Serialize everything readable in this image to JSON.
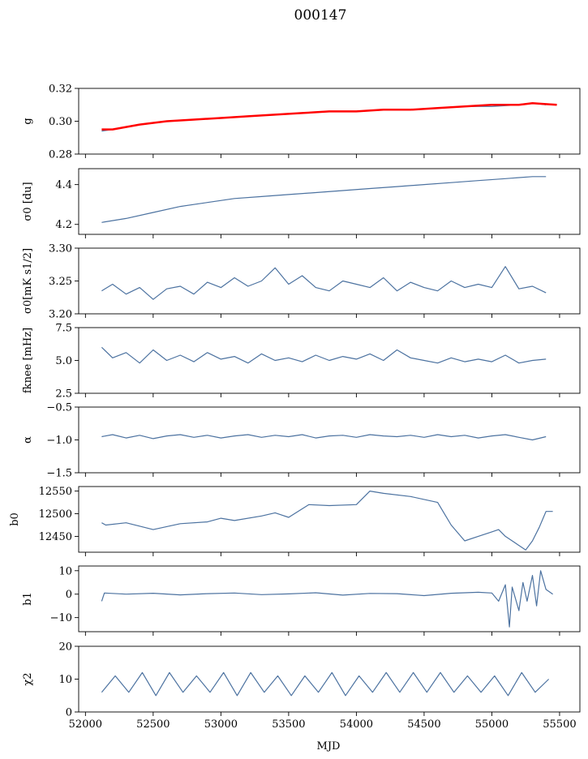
{
  "figure": {
    "title": "000147",
    "xlabel": "MJD"
  },
  "chart_data": [
    {
      "id": "g",
      "type": "line",
      "ylabel": "g",
      "xlim": [
        51950,
        55650
      ],
      "ylim": [
        0.28,
        0.32
      ],
      "yticks": [
        "0.28",
        "0.30",
        "0.32"
      ],
      "ytick_values": [
        0.28,
        0.3,
        0.32
      ],
      "colors": [
        "#4c72a0",
        "#ff0000"
      ],
      "series": [
        {
          "x": [
            52120,
            52200,
            52400,
            52600,
            52800,
            53000,
            53200,
            53400,
            53600,
            53800,
            54000,
            54200,
            54400,
            54600,
            54800,
            55000,
            55200,
            55300,
            55400
          ],
          "y": [
            0.294,
            0.295,
            0.298,
            0.3,
            0.301,
            0.302,
            0.303,
            0.304,
            0.305,
            0.306,
            0.306,
            0.307,
            0.307,
            0.308,
            0.309,
            0.309,
            0.31,
            0.311,
            0.31
          ]
        },
        {
          "x": [
            52120,
            52200,
            52400,
            52600,
            52800,
            53000,
            53200,
            53400,
            53600,
            53800,
            54000,
            54200,
            54400,
            54600,
            54800,
            55000,
            55200,
            55300,
            55480
          ],
          "y": [
            0.295,
            0.295,
            0.298,
            0.3,
            0.301,
            0.302,
            0.303,
            0.304,
            0.305,
            0.306,
            0.306,
            0.307,
            0.307,
            0.308,
            0.309,
            0.31,
            0.31,
            0.311,
            0.31
          ]
        }
      ]
    },
    {
      "id": "sigma0-du",
      "type": "line",
      "ylabel": "σ0 [du]",
      "xlim": [
        51950,
        55650
      ],
      "ylim": [
        4.15,
        4.48
      ],
      "yticks": [
        "4.2",
        "4.4"
      ],
      "ytick_values": [
        4.2,
        4.4
      ],
      "colors": [
        "#4c72a0"
      ],
      "series": [
        {
          "x": [
            52120,
            52300,
            52500,
            52700,
            52900,
            53100,
            53300,
            53500,
            53700,
            53900,
            54100,
            54300,
            54500,
            54700,
            54900,
            55100,
            55300,
            55400
          ],
          "y": [
            4.21,
            4.23,
            4.26,
            4.29,
            4.31,
            4.33,
            4.34,
            4.35,
            4.36,
            4.37,
            4.38,
            4.39,
            4.4,
            4.41,
            4.42,
            4.43,
            4.44,
            4.44
          ]
        }
      ]
    },
    {
      "id": "sigma0-mk",
      "type": "line",
      "ylabel": "σ0[mK s1/2]",
      "xlim": [
        51950,
        55650
      ],
      "ylim": [
        3.2,
        3.3
      ],
      "yticks": [
        "3.20",
        "3.25",
        "3.30"
      ],
      "ytick_values": [
        3.2,
        3.25,
        3.3
      ],
      "colors": [
        "#4c72a0"
      ],
      "series": [
        {
          "x": [
            52120,
            52200,
            52300,
            52400,
            52500,
            52600,
            52700,
            52800,
            52900,
            53000,
            53100,
            53200,
            53300,
            53400,
            53500,
            53600,
            53700,
            53800,
            53900,
            54000,
            54100,
            54200,
            54300,
            54400,
            54500,
            54600,
            54700,
            54800,
            54900,
            55000,
            55100,
            55200,
            55300,
            55400
          ],
          "y": [
            3.235,
            3.245,
            3.23,
            3.24,
            3.222,
            3.238,
            3.242,
            3.23,
            3.248,
            3.24,
            3.255,
            3.242,
            3.25,
            3.27,
            3.245,
            3.258,
            3.24,
            3.235,
            3.25,
            3.245,
            3.24,
            3.255,
            3.235,
            3.248,
            3.24,
            3.235,
            3.25,
            3.24,
            3.245,
            3.24,
            3.272,
            3.238,
            3.242,
            3.232
          ]
        }
      ]
    },
    {
      "id": "fknee",
      "type": "line",
      "ylabel": "fknee [mHz]",
      "xlim": [
        51950,
        55650
      ],
      "ylim": [
        2.5,
        7.5
      ],
      "yticks": [
        "2.5",
        "5.0",
        "7.5"
      ],
      "ytick_values": [
        2.5,
        5.0,
        7.5
      ],
      "colors": [
        "#4c72a0"
      ],
      "series": [
        {
          "x": [
            52120,
            52200,
            52300,
            52400,
            52500,
            52600,
            52700,
            52800,
            52900,
            53000,
            53100,
            53200,
            53300,
            53400,
            53500,
            53600,
            53700,
            53800,
            53900,
            54000,
            54100,
            54200,
            54300,
            54400,
            54500,
            54600,
            54700,
            54800,
            54900,
            55000,
            55100,
            55200,
            55300,
            55400
          ],
          "y": [
            6.0,
            5.2,
            5.6,
            4.8,
            5.8,
            5.0,
            5.4,
            4.9,
            5.6,
            5.1,
            5.3,
            4.8,
            5.5,
            5.0,
            5.2,
            4.9,
            5.4,
            5.0,
            5.3,
            5.1,
            5.5,
            5.0,
            5.8,
            5.2,
            5.0,
            4.8,
            5.2,
            4.9,
            5.1,
            4.9,
            5.4,
            4.8,
            5.0,
            5.1
          ]
        }
      ]
    },
    {
      "id": "alpha",
      "type": "line",
      "ylabel": "α",
      "xlim": [
        51950,
        55650
      ],
      "ylim": [
        -1.5,
        -0.5
      ],
      "yticks": [
        "−1.5",
        "−1.0",
        "−0.5"
      ],
      "ytick_values": [
        -1.5,
        -1.0,
        -0.5
      ],
      "colors": [
        "#4c72a0"
      ],
      "series": [
        {
          "x": [
            52120,
            52200,
            52300,
            52400,
            52500,
            52600,
            52700,
            52800,
            52900,
            53000,
            53100,
            53200,
            53300,
            53400,
            53500,
            53600,
            53700,
            53800,
            53900,
            54000,
            54100,
            54200,
            54300,
            54400,
            54500,
            54600,
            54700,
            54800,
            54900,
            55000,
            55100,
            55200,
            55300,
            55400
          ],
          "y": [
            -0.95,
            -0.92,
            -0.97,
            -0.93,
            -0.98,
            -0.94,
            -0.92,
            -0.96,
            -0.93,
            -0.97,
            -0.94,
            -0.92,
            -0.96,
            -0.93,
            -0.95,
            -0.92,
            -0.97,
            -0.94,
            -0.93,
            -0.96,
            -0.92,
            -0.94,
            -0.95,
            -0.93,
            -0.96,
            -0.92,
            -0.95,
            -0.93,
            -0.97,
            -0.94,
            -0.92,
            -0.96,
            -1.0,
            -0.95
          ]
        }
      ]
    },
    {
      "id": "b0",
      "type": "line",
      "ylabel": "b0",
      "xlim": [
        51950,
        55650
      ],
      "ylim": [
        12415,
        12560
      ],
      "yticks": [
        "12450",
        "12500",
        "12550"
      ],
      "ytick_values": [
        12450,
        12500,
        12550
      ],
      "colors": [
        "#4c72a0"
      ],
      "series": [
        {
          "x": [
            52120,
            52150,
            52300,
            52500,
            52700,
            52900,
            53000,
            53100,
            53300,
            53400,
            53500,
            53650,
            53800,
            54000,
            54100,
            54200,
            54400,
            54600,
            54700,
            54800,
            54900,
            55000,
            55050,
            55100,
            55150,
            55200,
            55250,
            55300,
            55350,
            55400,
            55450
          ],
          "y": [
            12480,
            12475,
            12480,
            12465,
            12478,
            12482,
            12490,
            12485,
            12495,
            12502,
            12492,
            12520,
            12518,
            12520,
            12550,
            12545,
            12538,
            12525,
            12475,
            12440,
            12450,
            12460,
            12465,
            12450,
            12440,
            12430,
            12420,
            12440,
            12470,
            12505,
            12505
          ]
        }
      ]
    },
    {
      "id": "b1",
      "type": "line",
      "ylabel": "b1",
      "xlim": [
        51950,
        55650
      ],
      "ylim": [
        -16,
        12
      ],
      "yticks": [
        "−10",
        "0",
        "10"
      ],
      "ytick_values": [
        -10,
        0,
        10
      ],
      "colors": [
        "#4c72a0"
      ],
      "series": [
        {
          "x": [
            52120,
            52140,
            52300,
            52500,
            52700,
            52900,
            53100,
            53300,
            53500,
            53700,
            53900,
            54100,
            54300,
            54500,
            54700,
            54900,
            55000,
            55050,
            55100,
            55130,
            55150,
            55200,
            55230,
            55260,
            55300,
            55330,
            55360,
            55400,
            55450
          ],
          "y": [
            -3,
            0.5,
            0,
            0.4,
            -0.3,
            0.2,
            0.5,
            -0.2,
            0.1,
            0.6,
            -0.4,
            0.3,
            0.2,
            -0.6,
            0.4,
            0.8,
            0.5,
            -3,
            4,
            -14,
            3,
            -7,
            5,
            -3,
            8,
            -5,
            10,
            2,
            0
          ]
        }
      ]
    },
    {
      "id": "chi2",
      "type": "line",
      "ylabel": "χ2",
      "xlim": [
        51950,
        55650
      ],
      "ylim": [
        0,
        20
      ],
      "yticks": [
        "0",
        "10",
        "20"
      ],
      "ytick_values": [
        0,
        10,
        20
      ],
      "xticks": [
        "52000",
        "52500",
        "53000",
        "53500",
        "54000",
        "54500",
        "55000",
        "55500"
      ],
      "colors": [
        "#4c72a0"
      ],
      "series": [
        {
          "x": [
            52120,
            52220,
            52320,
            52420,
            52520,
            52620,
            52720,
            52820,
            52920,
            53020,
            53120,
            53220,
            53320,
            53420,
            53520,
            53620,
            53720,
            53820,
            53920,
            54020,
            54120,
            54220,
            54320,
            54420,
            54520,
            54620,
            54720,
            54820,
            54920,
            55020,
            55120,
            55220,
            55320,
            55420
          ],
          "y": [
            6,
            11,
            6,
            12,
            5,
            12,
            6,
            11,
            6,
            12,
            5,
            12,
            6,
            11,
            5,
            11,
            6,
            12,
            5,
            11,
            6,
            12,
            6,
            12,
            6,
            12,
            6,
            11,
            6,
            11,
            5,
            12,
            6,
            10
          ]
        }
      ]
    }
  ]
}
